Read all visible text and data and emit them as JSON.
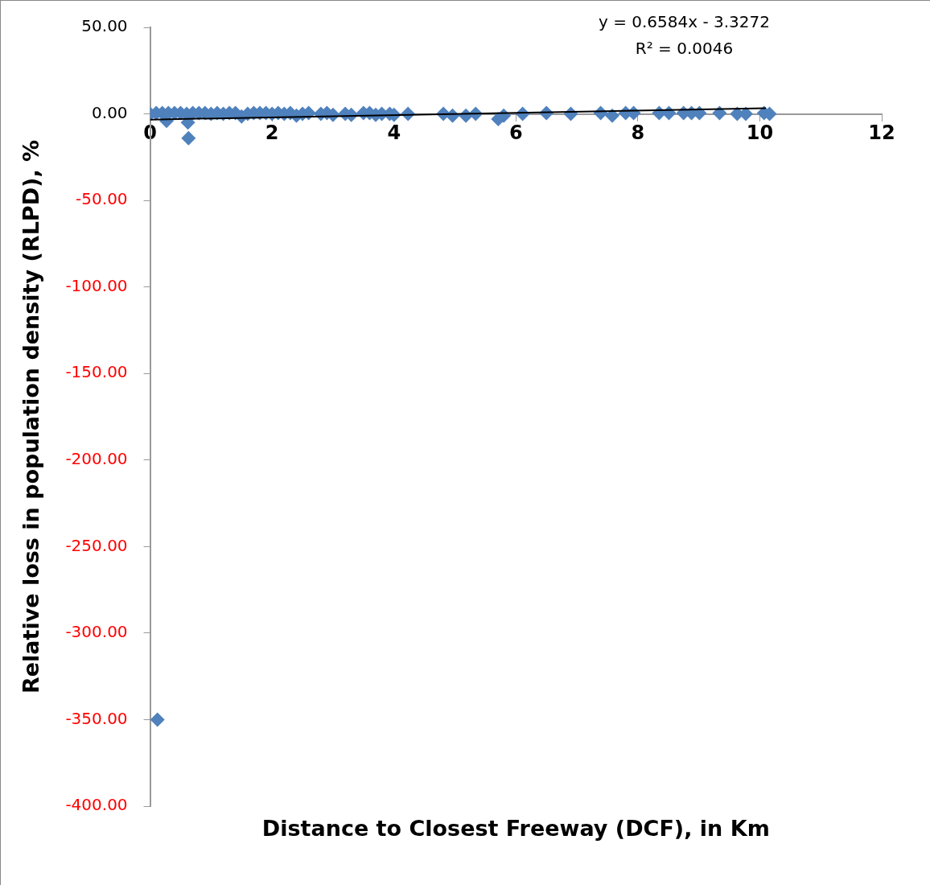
{
  "chart_data": {
    "type": "scatter",
    "xlabel": "Distance to Closest Freeway (DCF), in Km",
    "ylabel": "Relative loss in population density (RLPD), %",
    "annotations": [
      "y = 0.6584x - 3.3272",
      "R² = 0.0046"
    ],
    "xlim": [
      0,
      12
    ],
    "xticks": [
      0,
      2,
      4,
      6,
      8,
      10,
      12
    ],
    "ylim": [
      -400,
      50
    ],
    "yticks": [
      {
        "value": 50,
        "label": "50.00"
      },
      {
        "value": 0,
        "label": "0.00"
      },
      {
        "value": -50,
        "label": "-50.00"
      },
      {
        "value": -100,
        "label": "-100.00"
      },
      {
        "value": -150,
        "label": "-150.00"
      },
      {
        "value": -200,
        "label": "-200.00"
      },
      {
        "value": -250,
        "label": "-250.00"
      },
      {
        "value": -300,
        "label": "-300.00"
      },
      {
        "value": -350,
        "label": "-350.00"
      },
      {
        "value": -400,
        "label": "-400.00"
      }
    ],
    "grid": false,
    "legend": false,
    "marker": "diamond",
    "series": [
      {
        "color": "#4f81bd",
        "x": [
          0,
          0.1,
          0.12,
          0.2,
          0.27,
          0.3,
          0.4,
          0.5,
          0.6,
          0.62,
          0.63,
          0.7,
          0.8,
          0.9,
          1.0,
          1.1,
          1.2,
          1.3,
          1.4,
          1.5,
          1.6,
          1.7,
          1.8,
          1.9,
          2.0,
          2.1,
          2.2,
          2.3,
          2.4,
          2.5,
          2.6,
          2.8,
          2.9,
          3.0,
          3.2,
          3.3,
          3.5,
          3.6,
          3.7,
          3.8,
          3.93,
          4.0,
          4.23,
          4.81,
          4.96,
          5.18,
          5.34,
          5.71,
          5.8,
          6.11,
          6.5,
          6.9,
          7.39,
          7.58,
          7.8,
          7.93,
          8.35,
          8.51,
          8.75,
          8.88,
          9.01,
          9.34,
          9.63,
          9.77,
          10.07,
          10.16
        ],
        "values": [
          0,
          0.5,
          -350,
          0.5,
          -4,
          0.5,
          0.5,
          0.5,
          0,
          -5,
          -14,
          0.5,
          0.5,
          0.5,
          0,
          0.5,
          0,
          0.5,
          0.5,
          -1.5,
          0,
          0.5,
          0.5,
          0.5,
          0,
          0.5,
          0,
          0.5,
          -1,
          0,
          0.5,
          0,
          0.5,
          -0.5,
          0,
          -0.5,
          0.5,
          0.5,
          -0.5,
          0,
          0,
          -0.5,
          0,
          0,
          -1,
          -1,
          0,
          -3,
          -1,
          0,
          0.5,
          0,
          0.5,
          -1,
          0.5,
          0.5,
          0.5,
          0.5,
          0.5,
          0.5,
          0.5,
          0.5,
          0,
          0,
          0.5,
          0
        ]
      },
      {
        "type": "line",
        "color": "#000000",
        "marker": "none",
        "x": [
          0,
          10.1
        ],
        "values": [
          -3.3,
          3.3
        ]
      }
    ]
  }
}
